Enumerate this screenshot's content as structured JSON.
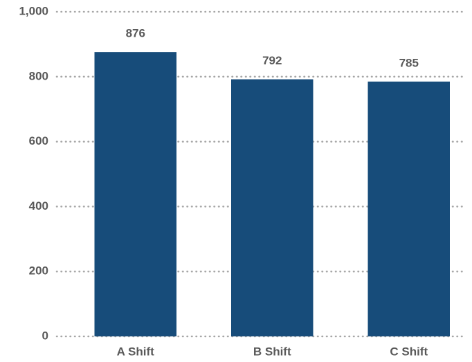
{
  "chart_data": {
    "type": "bar",
    "categories": [
      "A Shift",
      "B Shift",
      "C Shift"
    ],
    "values": [
      876,
      792,
      785
    ],
    "color": "#174c7a",
    "ylim": [
      0,
      1000
    ],
    "yticks": [
      0,
      200,
      400,
      600,
      800,
      {
        "value": 1000,
        "label": "1,000"
      }
    ],
    "grid": true
  }
}
